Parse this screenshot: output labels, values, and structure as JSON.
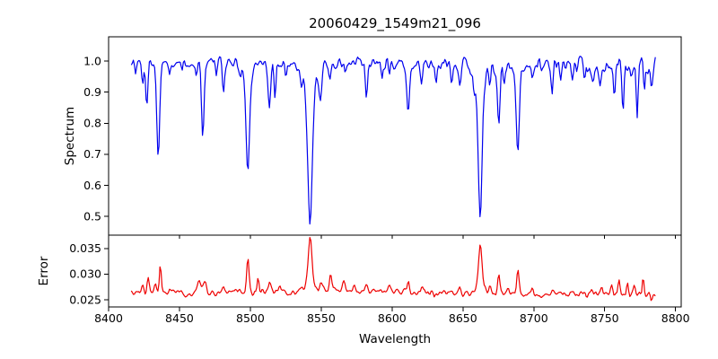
{
  "colors": {
    "spectrum_line": "#0000ee",
    "error_line": "#ee0000",
    "axis": "#000000",
    "background": "#ffffff"
  },
  "chart_data": {
    "type": "line",
    "title": "20060429_1549m21_096",
    "xlabel": "Wavelength",
    "xlim": [
      8400,
      8804
    ],
    "x_data_range": [
      8416,
      8786
    ],
    "x_ticks": [
      8400,
      8450,
      8500,
      8550,
      8600,
      8650,
      8700,
      8750,
      8800
    ],
    "x_tick_labels": [
      "8400",
      "8450",
      "8500",
      "8550",
      "8600",
      "8650",
      "8700",
      "8750",
      "8800"
    ],
    "grid": false,
    "legend": "none",
    "subplots": [
      {
        "id": "spectrum",
        "ylabel": "Spectrum",
        "ylim": [
          0.44,
          1.078
        ],
        "y_ticks": [
          0.5,
          0.6,
          0.7,
          0.8,
          0.9,
          1.0
        ],
        "y_tick_labels": [
          "0.5",
          "0.6",
          "0.7",
          "0.8",
          "0.9",
          "1.0"
        ],
        "color": "#0000ee",
        "description": "Normalized stellar spectrum, continuum near 1.0 with noise; strong Ca II triplet absorption at 8498, 8542, 8662; deepest minimum 0.47 at 8542, 0.52 at 8662, 0.655 at 8498, 0.69 at 8435 and 8689.",
        "series": {
          "x_start": 8416,
          "x_end": 8786,
          "x_step": 0.75,
          "seed": 1337,
          "continuum_start": 1.0,
          "continuum_slope": -5e-05,
          "noise_amp_start": 0.02,
          "noise_amp_end": 0.042,
          "absorption_lines_center_depth_sigma": [
            [
              8419,
              0.04,
              0.6
            ],
            [
              8424,
              0.07,
              0.7
            ],
            [
              8427,
              0.145,
              0.8
            ],
            [
              8435,
              0.315,
              1.0
            ],
            [
              8443,
              0.04,
              0.6
            ],
            [
              8452,
              0.04,
              0.6
            ],
            [
              8462,
              0.05,
              0.6
            ],
            [
              8466.5,
              0.23,
              0.9
            ],
            [
              8476,
              0.04,
              0.6
            ],
            [
              8481,
              0.1,
              0.7
            ],
            [
              8493,
              0.04,
              0.6
            ],
            [
              8498.2,
              0.3,
              1.2
            ],
            [
              8498,
              0.05,
              3.0
            ],
            [
              8513.5,
              0.155,
              0.9
            ],
            [
              8517.5,
              0.12,
              0.7
            ],
            [
              8525,
              0.04,
              0.6
            ],
            [
              8536,
              0.05,
              0.7
            ],
            [
              8542.1,
              0.43,
              1.5
            ],
            [
              8542,
              0.1,
              4.0
            ],
            [
              8549.5,
              0.09,
              0.9
            ],
            [
              8556,
              0.05,
              0.7
            ],
            [
              8567,
              0.04,
              0.6
            ],
            [
              8582,
              0.115,
              0.8
            ],
            [
              8593,
              0.05,
              0.6
            ],
            [
              8598,
              0.05,
              0.6
            ],
            [
              8611.5,
              0.145,
              0.9
            ],
            [
              8621,
              0.06,
              0.7
            ],
            [
              8631,
              0.07,
              0.6
            ],
            [
              8642,
              0.04,
              0.6
            ],
            [
              8648,
              0.06,
              0.7
            ],
            [
              8658,
              0.05,
              0.8
            ],
            [
              8662.2,
              0.385,
              1.3
            ],
            [
              8662,
              0.085,
              3.5
            ],
            [
              8669,
              0.05,
              0.7
            ],
            [
              8675.2,
              0.2,
              0.9
            ],
            [
              8679,
              0.06,
              0.6
            ],
            [
              8688.7,
              0.305,
              1.0
            ],
            [
              8699,
              0.05,
              0.6
            ],
            [
              8713,
              0.075,
              0.7
            ],
            [
              8719,
              0.04,
              0.6
            ],
            [
              8727,
              0.06,
              0.7
            ],
            [
              8736,
              0.05,
              0.6
            ],
            [
              8742,
              0.04,
              0.6
            ],
            [
              8747,
              0.05,
              0.6
            ],
            [
              8757,
              0.115,
              0.7
            ],
            [
              8763,
              0.14,
              0.7
            ],
            [
              8773,
              0.16,
              0.7
            ],
            [
              8778,
              0.07,
              0.6
            ],
            [
              8783,
              0.06,
              0.6
            ]
          ]
        }
      },
      {
        "id": "error",
        "ylabel": "Error",
        "ylim": [
          0.0236,
          0.0376
        ],
        "y_ticks": [
          0.025,
          0.03,
          0.035
        ],
        "y_tick_labels": [
          "0.025",
          "0.030",
          "0.035"
        ],
        "color": "#ee0000",
        "description": "Error spectrum, baseline near 0.026 with peaks at absorption lines; maximum 0.037 at 8542, 0.036 at 8662, 0.033 at 8498, 0.032 at 8436.",
        "series": {
          "x_start": 8416,
          "x_end": 8786,
          "x_step": 0.75,
          "seed": 904,
          "baseline": 0.0259,
          "baseline_bump_center_amp_sigma": [
            8560,
            0.0007,
            90
          ],
          "noise_amp": 0.0009,
          "peaks_center_amp_sigma": [
            [
              8424,
              0.002,
              0.8
            ],
            [
              8428,
              0.0027,
              0.8
            ],
            [
              8433,
              0.0018,
              0.7
            ],
            [
              8436.5,
              0.0054,
              0.65
            ],
            [
              8443,
              0.0008,
              0.7
            ],
            [
              8452,
              0.0007,
              0.7
            ],
            [
              8464,
              0.0022,
              1.2
            ],
            [
              8468,
              0.0021,
              1.0
            ],
            [
              8481,
              0.001,
              0.8
            ],
            [
              8490,
              0.0007,
              0.7
            ],
            [
              8498.3,
              0.0063,
              0.85
            ],
            [
              8505.5,
              0.0028,
              0.7
            ],
            [
              8513.5,
              0.0022,
              0.8
            ],
            [
              8521,
              0.0008,
              0.7
            ],
            [
              8536,
              0.001,
              0.8
            ],
            [
              8542.2,
              0.0088,
              1.2
            ],
            [
              8542,
              0.002,
              3.5
            ],
            [
              8550,
              0.0015,
              1.0
            ],
            [
              8556.5,
              0.003,
              1.0
            ],
            [
              8566,
              0.0022,
              0.9
            ],
            [
              8573,
              0.001,
              0.8
            ],
            [
              8582,
              0.0013,
              0.8
            ],
            [
              8598,
              0.0008,
              0.7
            ],
            [
              8611.5,
              0.0022,
              0.7
            ],
            [
              8621,
              0.0008,
              0.7
            ],
            [
              8630,
              -0.0013,
              0.5
            ],
            [
              8648,
              0.0008,
              0.8
            ],
            [
              8662.3,
              0.0078,
              1.1
            ],
            [
              8662,
              0.0018,
              3.0
            ],
            [
              8669,
              0.0012,
              0.7
            ],
            [
              8675.3,
              0.0036,
              0.8
            ],
            [
              8682,
              0.001,
              0.7
            ],
            [
              8688.8,
              0.0046,
              0.8
            ],
            [
              8699,
              0.0008,
              0.7
            ],
            [
              8713,
              0.001,
              0.7
            ],
            [
              8727,
              0.0008,
              0.7
            ],
            [
              8741,
              0.0008,
              0.7
            ],
            [
              8748,
              0.0016,
              0.8
            ],
            [
              8755,
              0.0024,
              0.8
            ],
            [
              8760,
              0.0028,
              0.7
            ],
            [
              8766,
              0.0022,
              0.7
            ],
            [
              8771,
              0.002,
              0.7
            ],
            [
              8777,
              0.0034,
              0.6
            ],
            [
              8783,
              -0.001,
              0.6
            ]
          ]
        }
      }
    ]
  }
}
